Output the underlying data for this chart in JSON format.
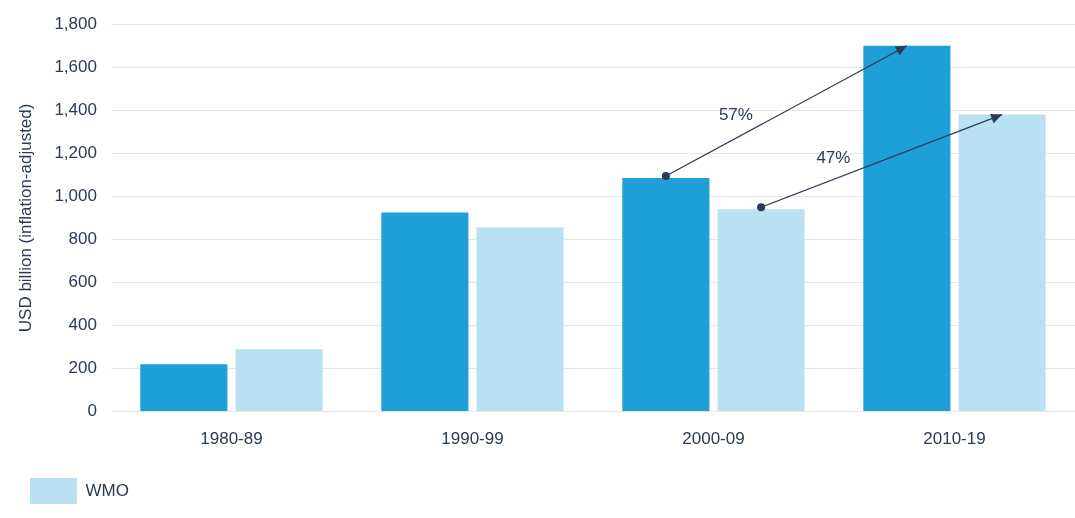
{
  "chart_data": {
    "type": "bar",
    "categories": [
      "1980-89",
      "1990-99",
      "2000-09",
      "2010-19"
    ],
    "series": [
      {
        "color": "#1f9fd8",
        "values": [
          220,
          925,
          1085,
          1700
        ]
      },
      {
        "name": "WMO",
        "color": "#bae1f2",
        "values": [
          290,
          855,
          940,
          1380
        ]
      }
    ],
    "ylabel": "USD billion (inflation-adjusted)",
    "ylim": [
      0,
      1800
    ],
    "yticks": [
      0,
      200,
      400,
      600,
      800,
      {
        "value": 1000,
        "label": "1,000"
      },
      {
        "value": 1200,
        "label": "1,200"
      },
      {
        "value": 1400,
        "label": "1,400"
      },
      {
        "value": 1600,
        "label": "1,600"
      },
      {
        "value": 1800,
        "label": "1,800"
      }
    ],
    "grid": "y",
    "legend": "bottom left",
    "annotations": [
      "57%",
      "47%"
    ]
  }
}
